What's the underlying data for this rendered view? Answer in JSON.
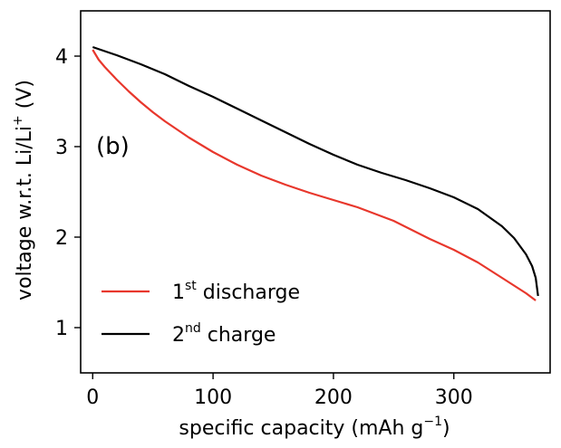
{
  "chart_data": {
    "type": "line",
    "panel_label": "(b)",
    "xlabel": {
      "text": "specific capacity (mAh g",
      "sup": "−1",
      "tail": ")"
    },
    "ylabel": {
      "text": "voltage w.r.t. Li/Li",
      "sup": "+",
      "tail": " (V)"
    },
    "xlim": [
      -10,
      380
    ],
    "ylim": [
      0.5,
      4.5
    ],
    "xticks": [
      0,
      100,
      200,
      300
    ],
    "yticks": [
      1,
      2,
      3,
      4
    ],
    "grid": false,
    "legend_position": "bottom-left",
    "series": [
      {
        "name": "1st discharge",
        "name_base": "1",
        "name_sup": "st",
        "name_tail": " discharge",
        "color": "#e8372c",
        "x": [
          0,
          5,
          10,
          20,
          30,
          40,
          50,
          60,
          80,
          100,
          120,
          140,
          160,
          180,
          200,
          220,
          250,
          280,
          300,
          320,
          340,
          360,
          368
        ],
        "y": [
          4.07,
          3.96,
          3.88,
          3.74,
          3.61,
          3.49,
          3.38,
          3.28,
          3.1,
          2.94,
          2.8,
          2.68,
          2.58,
          2.49,
          2.41,
          2.33,
          2.18,
          1.98,
          1.86,
          1.72,
          1.55,
          1.38,
          1.3
        ]
      },
      {
        "name": "2nd charge",
        "name_base": "2",
        "name_sup": "nd",
        "name_tail": " charge",
        "color": "#000000",
        "x": [
          0,
          20,
          40,
          60,
          80,
          100,
          120,
          140,
          160,
          180,
          200,
          220,
          240,
          260,
          280,
          300,
          320,
          340,
          350,
          360,
          365,
          368,
          370
        ],
        "y": [
          4.1,
          4.01,
          3.91,
          3.8,
          3.67,
          3.55,
          3.42,
          3.29,
          3.16,
          3.03,
          2.91,
          2.8,
          2.71,
          2.63,
          2.54,
          2.44,
          2.31,
          2.12,
          1.99,
          1.81,
          1.68,
          1.55,
          1.35
        ]
      }
    ]
  }
}
